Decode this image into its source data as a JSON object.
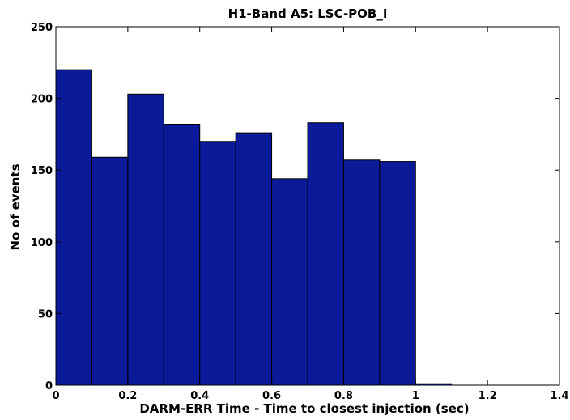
{
  "chart_data": {
    "type": "bar",
    "title": "H1-Band A5: LSC-POB_I",
    "xlabel": "DARM-ERR Time - Time to closest injection (sec)",
    "ylabel": "No of events",
    "xlim": [
      0,
      1.4
    ],
    "ylim": [
      0,
      250
    ],
    "xticks": [
      "0",
      "0.2",
      "0.4",
      "0.6",
      "0.8",
      "1",
      "1.2",
      "1.4"
    ],
    "yticks": [
      "0",
      "50",
      "100",
      "150",
      "200",
      "250"
    ],
    "grid": false,
    "bin_width": 0.1,
    "bins": [
      {
        "x0": 0.0,
        "x1": 0.1,
        "value": 220
      },
      {
        "x0": 0.1,
        "x1": 0.2,
        "value": 159
      },
      {
        "x0": 0.2,
        "x1": 0.3,
        "value": 203
      },
      {
        "x0": 0.3,
        "x1": 0.4,
        "value": 182
      },
      {
        "x0": 0.4,
        "x1": 0.5,
        "value": 170
      },
      {
        "x0": 0.5,
        "x1": 0.6,
        "value": 176
      },
      {
        "x0": 0.6,
        "x1": 0.7,
        "value": 144
      },
      {
        "x0": 0.7,
        "x1": 0.8,
        "value": 183
      },
      {
        "x0": 0.8,
        "x1": 0.9,
        "value": 157
      },
      {
        "x0": 0.9,
        "x1": 1.0,
        "value": 156
      },
      {
        "x0": 1.0,
        "x1": 1.1,
        "value": 1
      }
    ],
    "bar_color": "#0a1a99",
    "edge_color": "#000000"
  }
}
